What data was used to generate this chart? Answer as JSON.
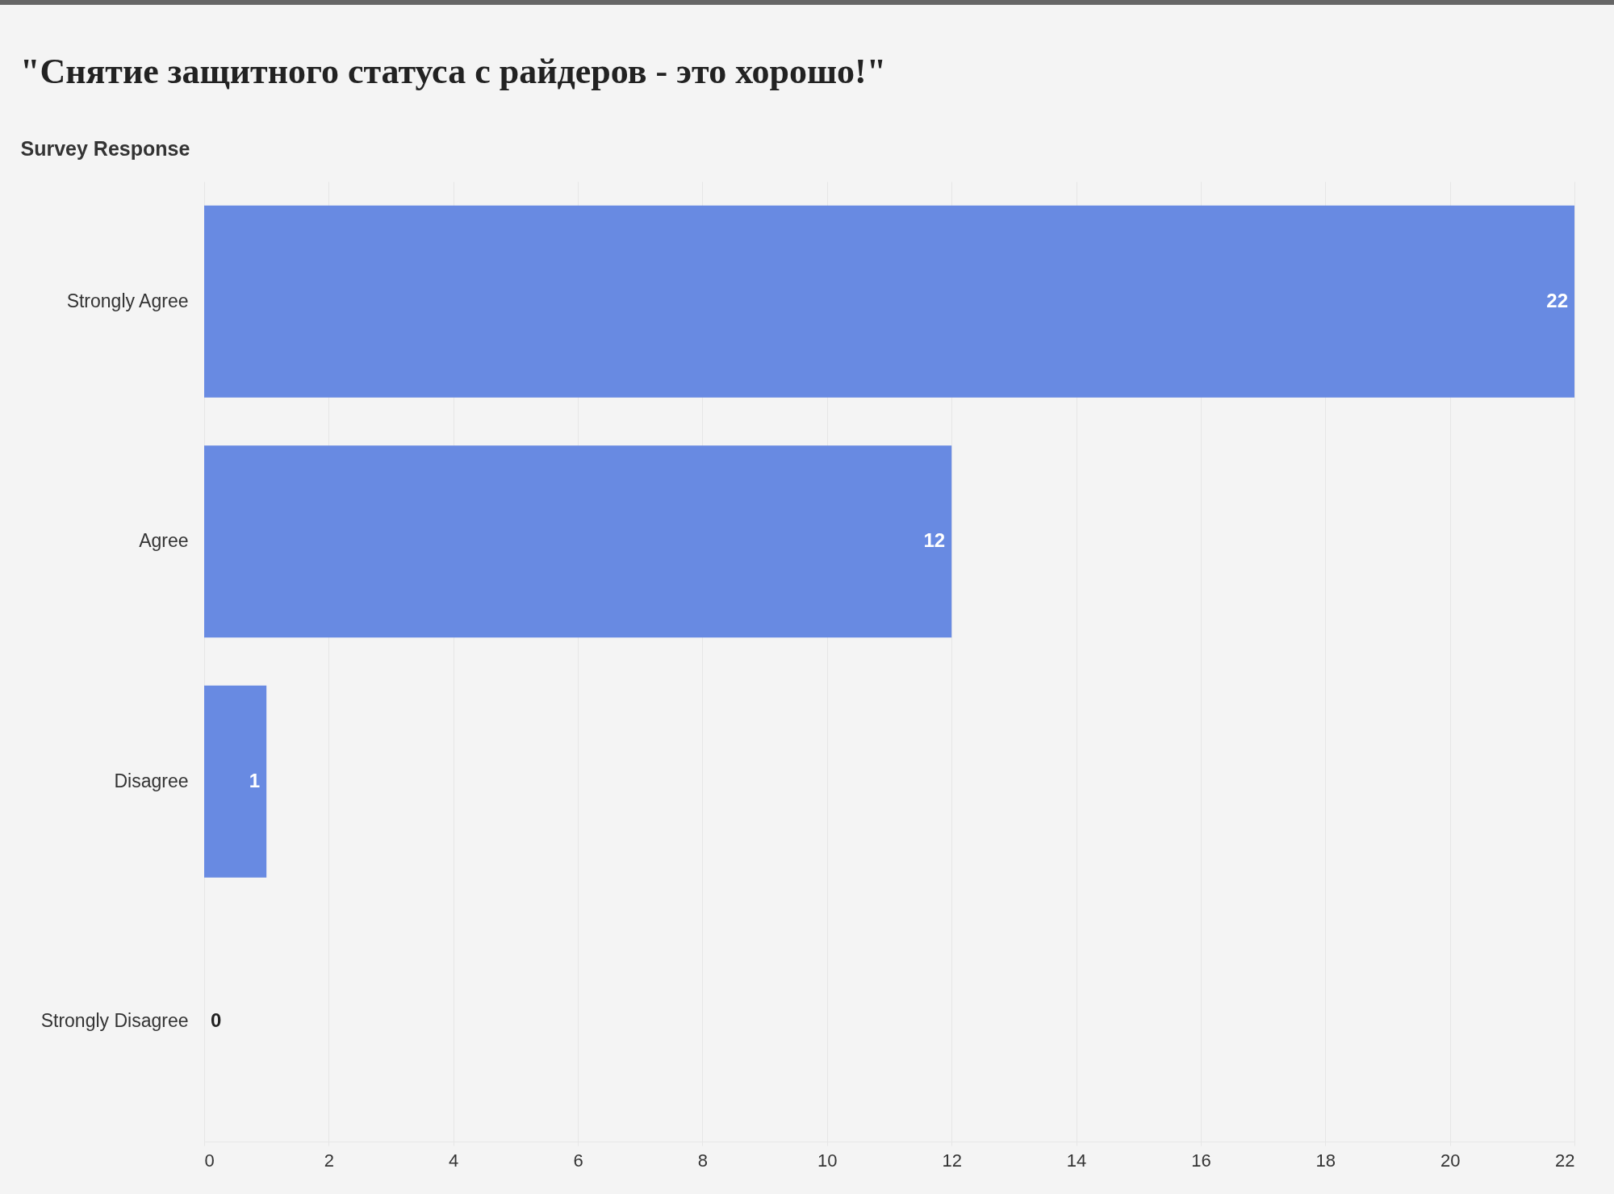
{
  "chart_data": {
    "type": "bar",
    "orientation": "horizontal",
    "title": "\"Снятие защитного статуса с райдеров - это хорошо!\"",
    "ylabel": "Survey Response",
    "categories": [
      "Strongly Agree",
      "Agree",
      "Disagree",
      "Strongly Disagree"
    ],
    "values": [
      22,
      12,
      1,
      0
    ],
    "color": "#688ae2",
    "xlim": [
      0,
      22
    ],
    "xticks": [
      0,
      2,
      4,
      6,
      8,
      10,
      12,
      14,
      16,
      18,
      20,
      22
    ],
    "grid": "x",
    "data_labels": true
  }
}
